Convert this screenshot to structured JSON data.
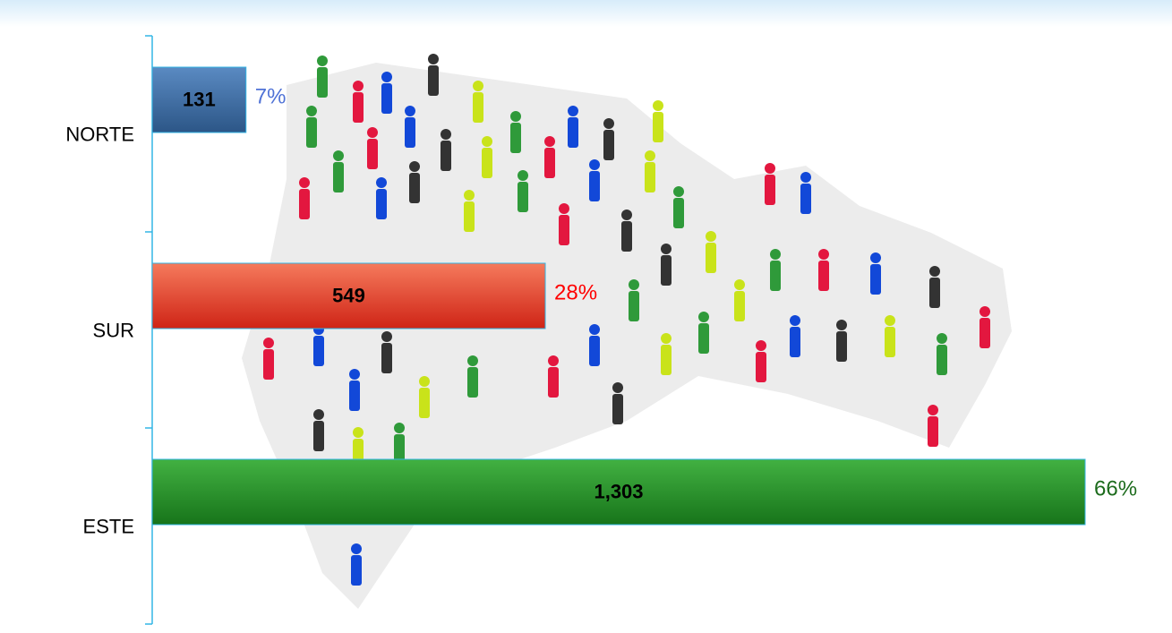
{
  "chart_data": {
    "type": "bar",
    "orientation": "horizontal",
    "categories": [
      "NORTE",
      "SUR",
      "ESTE"
    ],
    "values": [
      131,
      549,
      1303
    ],
    "value_labels": [
      "131",
      "549",
      "1,303"
    ],
    "percent_labels": [
      "7%",
      "28%",
      "66%"
    ],
    "colors": [
      "#3f6fa6",
      "#e2452e",
      "#2b8f2f"
    ],
    "percent_label_colors": [
      "#4f72d6",
      "#ff0000",
      "#1c6b1c"
    ],
    "xlim": [
      0,
      1303
    ]
  }
}
